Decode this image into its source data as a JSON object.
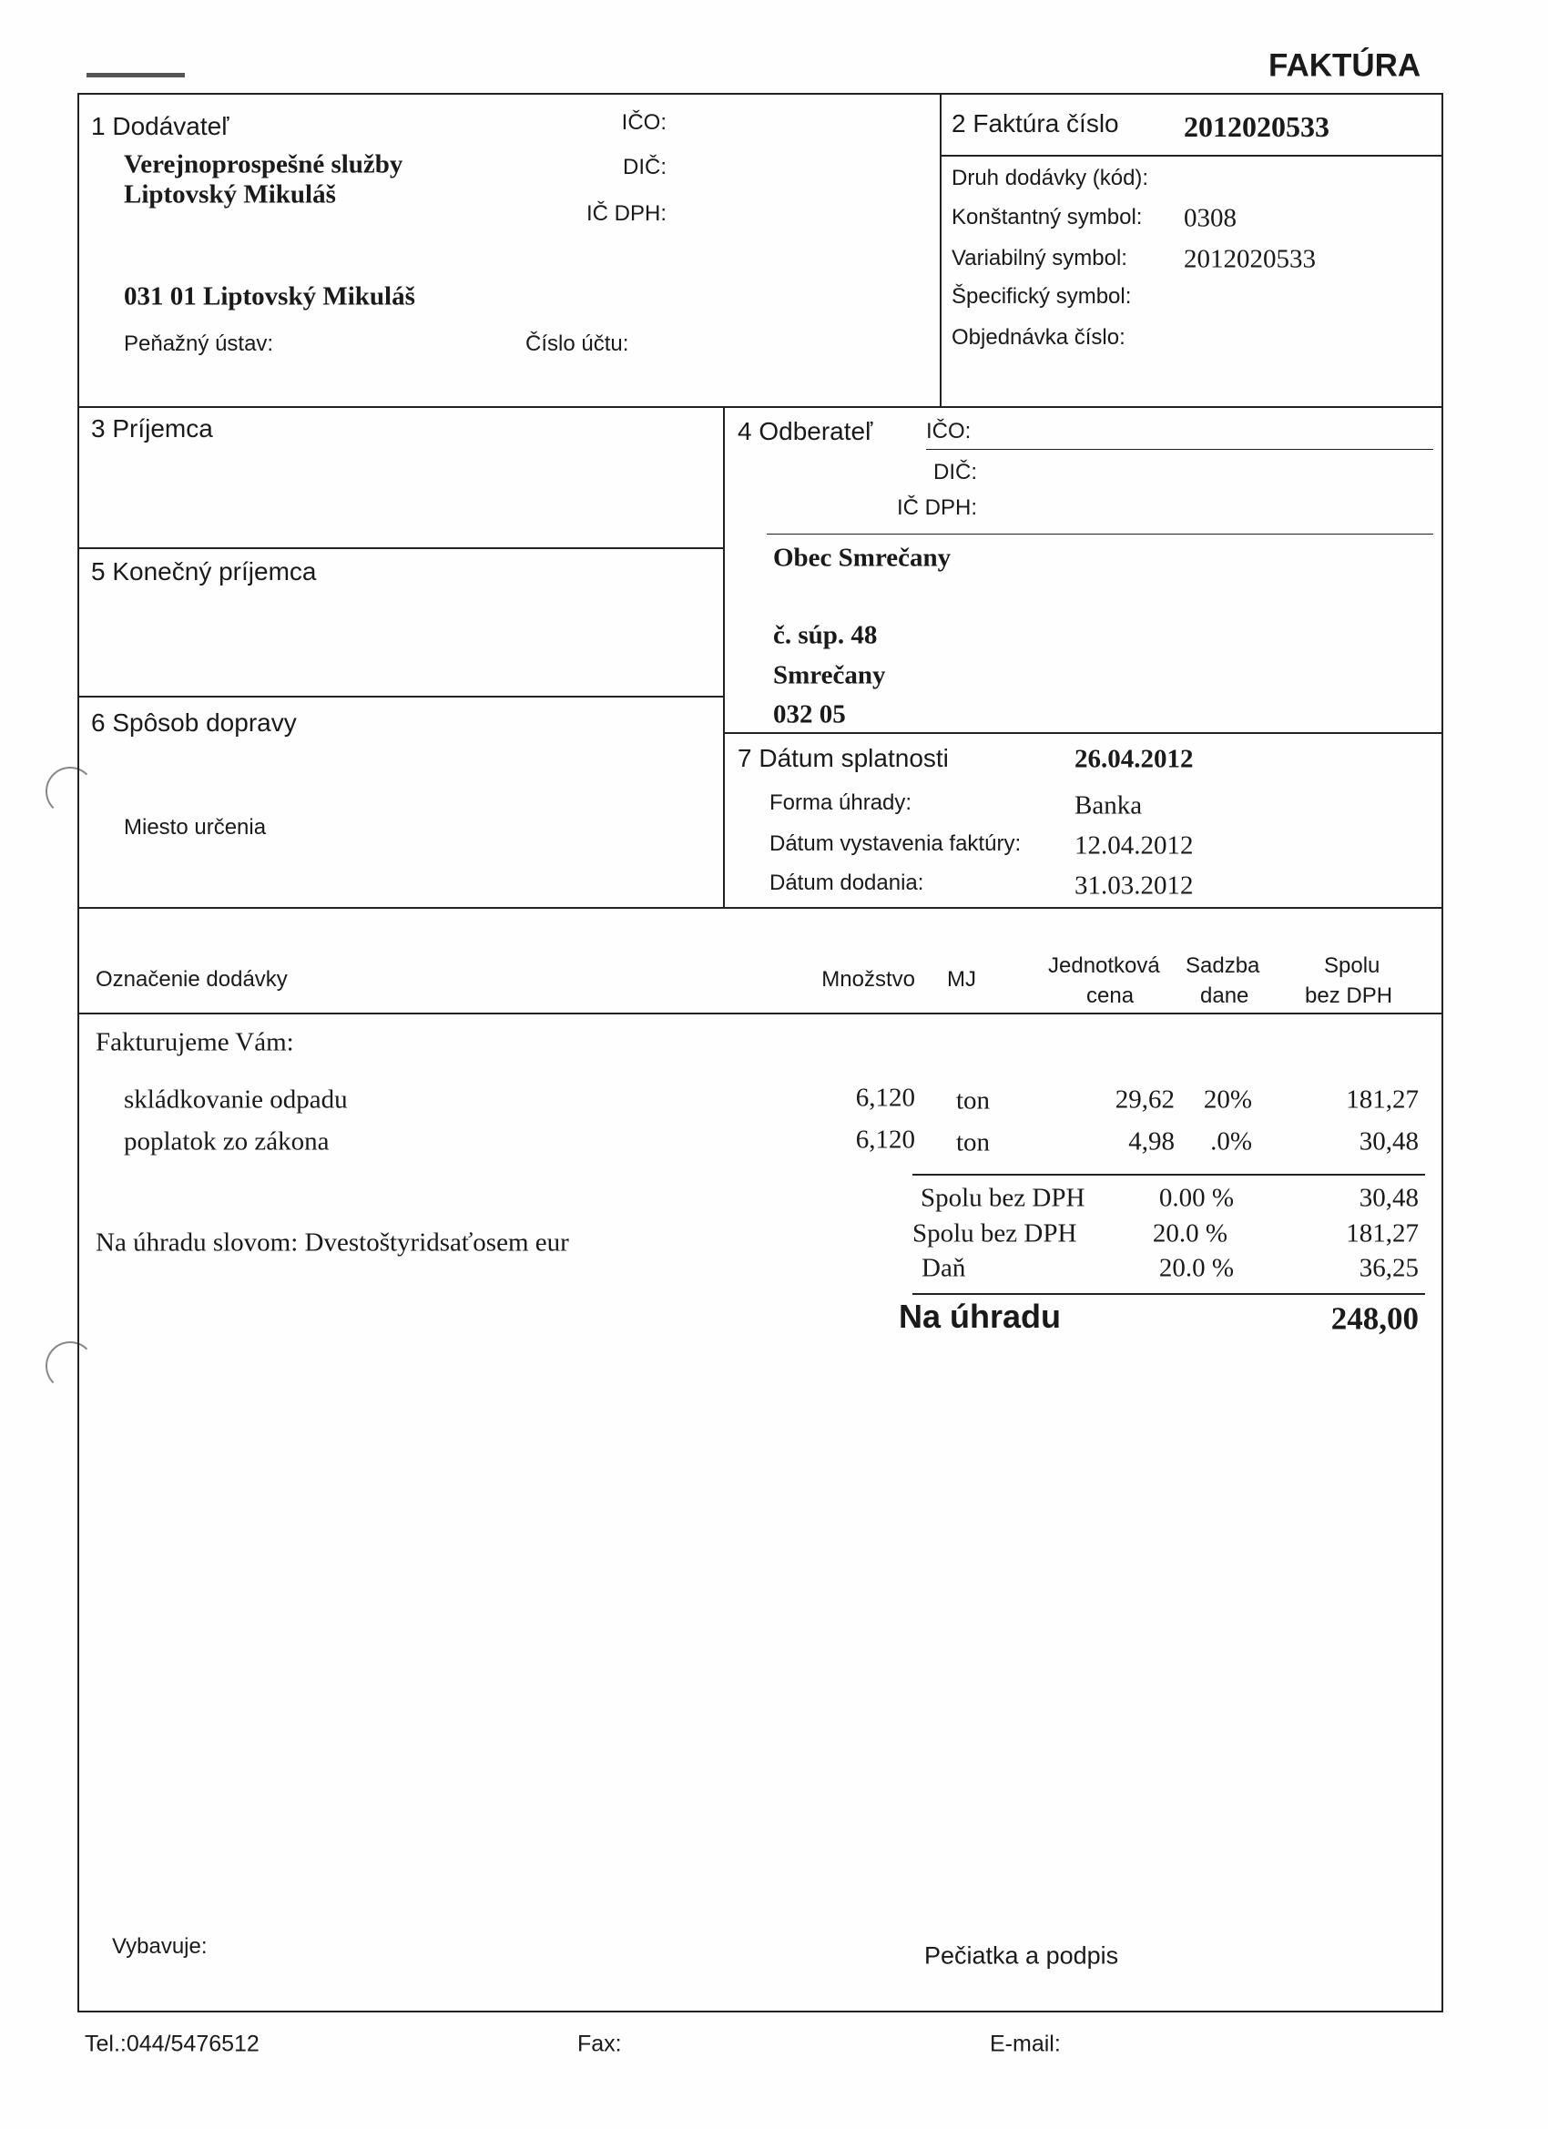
{
  "title": "FAKTÚRA",
  "supplier": {
    "heading": "1  Dodávateľ",
    "name_line1": "Verejnoprospešné služby",
    "name_line2": "Liptovský Mikuláš",
    "address": "031 01 Liptovský Mikuláš",
    "ico_label": "IČO:",
    "dic_label": "DIČ:",
    "icdph_label": "IČ DPH:",
    "bank_label": "Peňažný ústav:",
    "account_label": "Číslo účtu:"
  },
  "invoice": {
    "heading": "2  Faktúra číslo",
    "number": "2012020533",
    "delivery_type_label": "Druh dodávky (kód):",
    "constant_symbol_label": "Konštantný symbol:",
    "constant_symbol": "0308",
    "variable_symbol_label": "Variabilný symbol:",
    "variable_symbol": "2012020533",
    "specific_symbol_label": "Špecifický symbol:",
    "order_label": "Objednávka číslo:"
  },
  "recipient": {
    "heading": "3  Príjemca"
  },
  "final_recipient": {
    "heading": "5  Konečný príjemca"
  },
  "transport": {
    "heading": "6  Spôsob dopravy",
    "destination_label": "Miesto určenia"
  },
  "customer": {
    "heading": "4  Odberateľ",
    "ico_label": "IČO:",
    "dic_label": "DIČ:",
    "icdph_label": "IČ DPH:",
    "name": "Obec Smrečany",
    "street": "č. súp. 48",
    "city": "Smrečany",
    "zip": "032 05"
  },
  "payment": {
    "due_label": "7  Dátum splatnosti",
    "due_date": "26.04.2012",
    "method_label": "Forma úhrady:",
    "method": "Banka",
    "issue_label": "Dátum vystavenia faktúry:",
    "issue_date": "12.04.2012",
    "delivery_label": "Dátum dodania:",
    "delivery_date": "31.03.2012"
  },
  "table": {
    "headers": {
      "description": "Označenie dodávky",
      "quantity": "Množstvo",
      "unit": "MJ",
      "unit_price_1": "Jednotková",
      "unit_price_2": "cena",
      "vat_rate_1": "Sadzba",
      "vat_rate_2": "dane",
      "total_1": "Spolu",
      "total_2": "bez DPH"
    },
    "intro": "Fakturujeme Vám:",
    "rows": [
      {
        "description": "skládkovanie odpadu",
        "quantity": "6,120",
        "unit": "ton",
        "unit_price": "29,62",
        "vat_rate": "20%",
        "total": "181,27"
      },
      {
        "description": "poplatok zo zákona",
        "quantity": "6,120",
        "unit": "ton",
        "unit_price": "4,98",
        "vat_rate": ".0%",
        "total": "30,48"
      }
    ]
  },
  "summary": {
    "in_words": "Na úhradu slovom: Dvestoštyridsaťosem eur",
    "lines": [
      {
        "label": "Spolu bez DPH",
        "rate": "0.00 %",
        "amount": "30,48"
      },
      {
        "label": "Spolu bez DPH",
        "rate": "20.0 %",
        "amount": "181,27"
      },
      {
        "label": "Daň",
        "rate": "20.0 %",
        "amount": "36,25"
      }
    ],
    "total_label": "Na úhradu",
    "total": "248,00"
  },
  "signature": {
    "issued_by_label": "Vybavuje:",
    "stamp_label": "Pečiatka a podpis"
  },
  "footer": {
    "tel": "Tel.:044/5476512",
    "fax_label": "Fax:",
    "email_label": "E-mail:"
  }
}
